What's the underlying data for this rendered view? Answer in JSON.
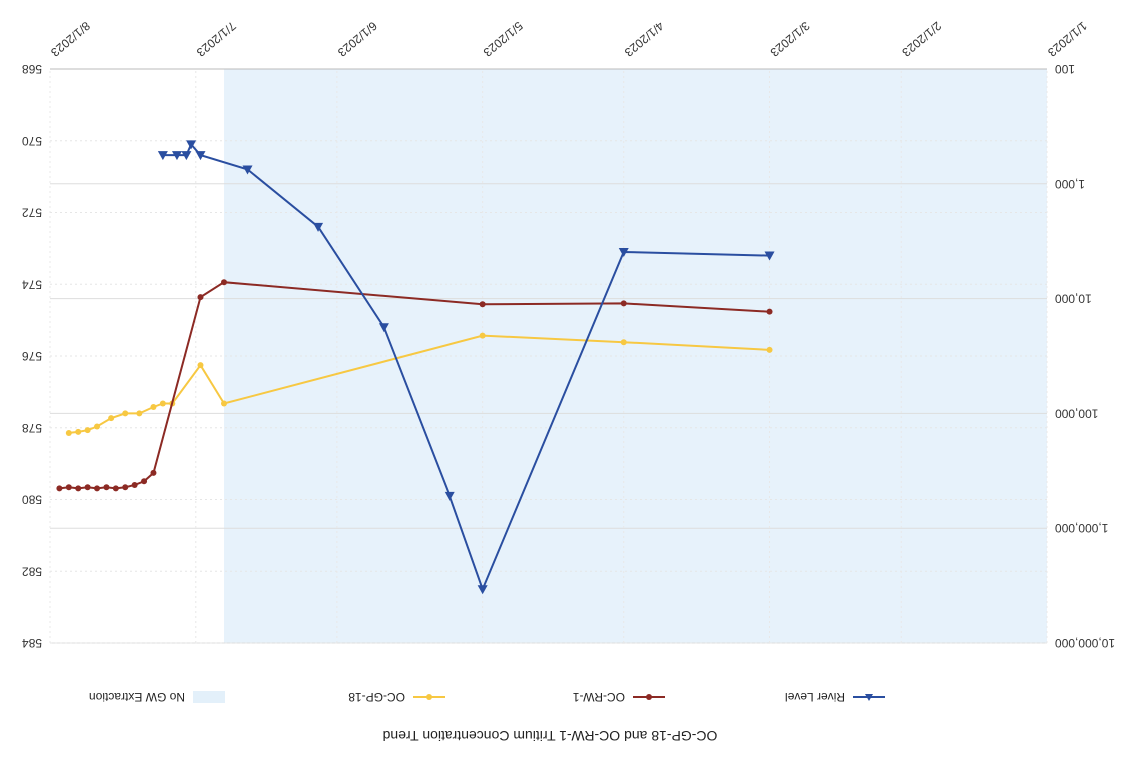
{
  "chart_data": {
    "type": "line",
    "title": "OC-GP-18 and OC-RW-1 Tritium Concentration Trend",
    "x_ticks": [
      "1/1/2023",
      "2/1/2023",
      "3/1/2023",
      "4/1/2023",
      "5/1/2023",
      "6/1/2023",
      "7/1/2023",
      "8/1/2023"
    ],
    "xlim": [
      "2023-01-01",
      "2023-08-01"
    ],
    "left_axis": {
      "scale": "log",
      "ylim": [
        100,
        10000000
      ],
      "tick_labels": [
        "100",
        "1,000",
        "10,000",
        "100,000",
        "1,000,000",
        "10,000,000"
      ]
    },
    "right_axis": {
      "scale": "linear",
      "ylim": [
        568,
        584
      ],
      "tick_labels": [
        "568",
        "570",
        "572",
        "574",
        "576",
        "578",
        "580",
        "582",
        "584"
      ],
      "ticks": [
        568,
        570,
        572,
        574,
        576,
        578,
        580,
        582,
        584
      ]
    },
    "shaded_region": {
      "name": "No GW Extraction",
      "x_start": "2023-01-01",
      "x_end": "2023-06-25",
      "color": "#e3f0fa"
    },
    "series": [
      {
        "name": "River Level",
        "axis": "right",
        "color": "#2a4ea0",
        "marker": "triangle",
        "points": [
          [
            "2023-03-01",
            573.2
          ],
          [
            "2023-04-01",
            573.1
          ],
          [
            "2023-05-01",
            582.5
          ],
          [
            "2023-05-08",
            579.9
          ],
          [
            "2023-05-22",
            575.2
          ],
          [
            "2023-06-05",
            572.4
          ],
          [
            "2023-06-20",
            570.8
          ],
          [
            "2023-06-30",
            570.4
          ],
          [
            "2023-07-02",
            570.1
          ],
          [
            "2023-07-03",
            570.4
          ],
          [
            "2023-07-05",
            570.4
          ],
          [
            "2023-07-08",
            570.4
          ]
        ]
      },
      {
        "name": "OC-RW-1",
        "axis": "left",
        "color": "#8c2a24",
        "marker": "circle",
        "points": [
          [
            "2023-03-01",
            13000
          ],
          [
            "2023-04-01",
            11000
          ],
          [
            "2023-05-01",
            11200
          ],
          [
            "2023-06-25",
            7200
          ],
          [
            "2023-06-30",
            9700
          ],
          [
            "2023-07-10",
            330000
          ],
          [
            "2023-07-12",
            390000
          ],
          [
            "2023-07-14",
            420000
          ],
          [
            "2023-07-16",
            440000
          ],
          [
            "2023-07-18",
            450000
          ],
          [
            "2023-07-20",
            440000
          ],
          [
            "2023-07-22",
            450000
          ],
          [
            "2023-07-24",
            440000
          ],
          [
            "2023-07-26",
            450000
          ],
          [
            "2023-07-28",
            440000
          ],
          [
            "2023-07-30",
            450000
          ]
        ]
      },
      {
        "name": "OC-GP-18",
        "axis": "left",
        "color": "#f7c842",
        "marker": "circle",
        "points": [
          [
            "2023-03-01",
            28000
          ],
          [
            "2023-04-01",
            24000
          ],
          [
            "2023-05-01",
            21000
          ],
          [
            "2023-06-25",
            82000
          ],
          [
            "2023-06-30",
            38000
          ],
          [
            "2023-07-06",
            82000
          ],
          [
            "2023-07-08",
            82000
          ],
          [
            "2023-07-10",
            88000
          ],
          [
            "2023-07-13",
            100000
          ],
          [
            "2023-07-16",
            100000
          ],
          [
            "2023-07-19",
            110000
          ],
          [
            "2023-07-22",
            130000
          ],
          [
            "2023-07-24",
            140000
          ],
          [
            "2023-07-26",
            145000
          ],
          [
            "2023-07-28",
            148000
          ]
        ]
      }
    ],
    "legend": {
      "placement": "bottom",
      "items": [
        "River Level",
        "OC-RW-1",
        "OC-GP-18",
        "No GW Extraction"
      ]
    },
    "grid": true,
    "orientation_note": "rotated 180 degrees"
  }
}
